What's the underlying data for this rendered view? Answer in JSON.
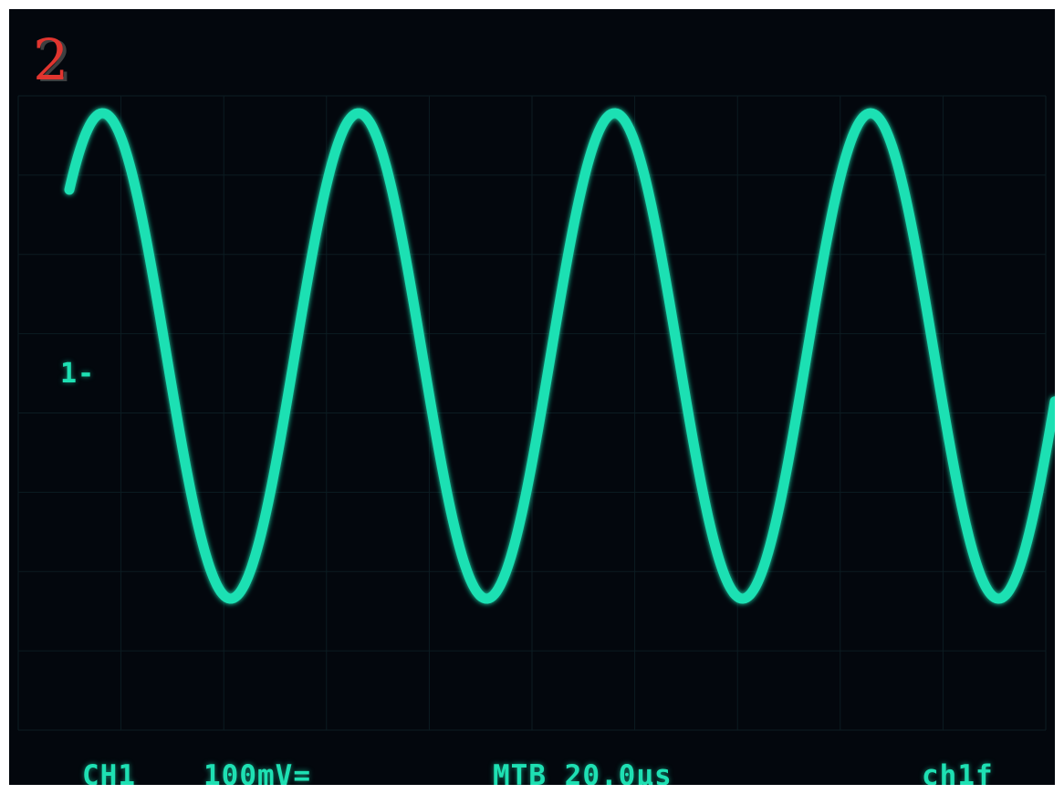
{
  "frame_label": "2",
  "channel_marker": "1-",
  "status_bar": {
    "channel": "CH1",
    "volts_per_div": "100mV=",
    "timebase": "MTB 20.0μs",
    "trigger_source": "ch1f"
  },
  "colors": {
    "screen": "#03070d",
    "trace": "#1ee0b3",
    "frame_label": "#e0352f"
  },
  "trace": {
    "waveform": "sine",
    "cycles_visible": 3.85,
    "peak_fraction": 0.95
  }
}
